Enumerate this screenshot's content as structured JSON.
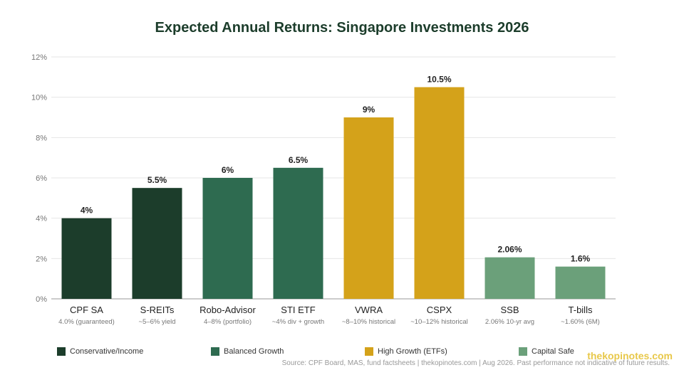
{
  "chart_data": {
    "type": "bar",
    "title": "Expected Annual Returns: Singapore Investments 2026",
    "ylim": [
      0,
      12
    ],
    "yticks": [
      0,
      2,
      4,
      6,
      8,
      10,
      12
    ],
    "ytick_labels": [
      "0%",
      "2%",
      "4%",
      "6%",
      "8%",
      "10%",
      "12%"
    ],
    "grid": true,
    "categories": [
      "CPF SA",
      "S-REITs",
      "Robo-Advisor",
      "STI ETF",
      "VWRA",
      "CSPX",
      "SSB",
      "T-bills"
    ],
    "sublabels": [
      "4.0% (guaranteed)",
      "~5–6% yield",
      "4–8% (portfolio)",
      "~4% div + growth",
      "~8–10% historical",
      "~10–12% historical",
      "2.06% 10-yr avg",
      "~1.60% (6M)"
    ],
    "values": [
      4,
      5.5,
      6,
      6.5,
      9,
      10.5,
      2.06,
      1.6
    ],
    "value_labels": [
      "4%",
      "5.5%",
      "6%",
      "6.5%",
      "9%",
      "10.5%",
      "2.06%",
      "1.6%"
    ],
    "groups": [
      0,
      0,
      1,
      1,
      2,
      2,
      3,
      3
    ],
    "legend": [
      {
        "name": "Conservative/Income",
        "color": "#1c3d2b"
      },
      {
        "name": "Balanced Growth",
        "color": "#2e6b50"
      },
      {
        "name": "High Growth (ETFs)",
        "color": "#d4a21a"
      },
      {
        "name": "Capital Safe",
        "color": "#6ba07a"
      }
    ],
    "legend_position": "bottom"
  },
  "footer": {
    "watermark": "thekopinotes.com",
    "source": "Source: CPF Board, MAS, fund factsheets | thekopinotes.com | Aug 2026. Past performance not indicative of future results."
  }
}
